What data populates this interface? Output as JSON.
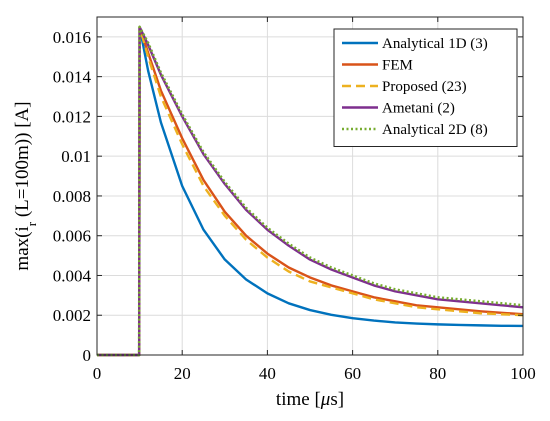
{
  "chart_data": {
    "type": "line",
    "title": "",
    "xlabel_parts": [
      "time [",
      "μ",
      "s]"
    ],
    "ylabel_parts": [
      "max(i",
      "r",
      " (L=100m)) [A]"
    ],
    "xlim": [
      0,
      100
    ],
    "ylim": [
      0,
      0.017
    ],
    "xticks": [
      0,
      20,
      40,
      60,
      80,
      100
    ],
    "yticks": [
      0,
      0.002,
      0.004,
      0.006,
      0.008,
      0.01,
      0.012,
      0.014,
      0.016
    ],
    "xtick_labels": [
      "0",
      "20",
      "40",
      "60",
      "80",
      "100"
    ],
    "ytick_labels": [
      "0",
      "0.002",
      "0.004",
      "0.006",
      "0.008",
      "0.01",
      "0.012",
      "0.014",
      "0.016"
    ],
    "grid": true,
    "legend_position": "top-right",
    "series": [
      {
        "name": "Analytical 1D (3)",
        "color": "#0072bd",
        "style": "solid",
        "x": [
          0,
          9.9,
          10,
          12,
          15,
          20,
          25,
          30,
          35,
          40,
          45,
          50,
          55,
          60,
          65,
          70,
          75,
          80,
          85,
          90,
          95,
          100
        ],
        "y": [
          0,
          0,
          0.0165,
          0.0143,
          0.0117,
          0.0085,
          0.0063,
          0.0048,
          0.0038,
          0.0031,
          0.0026,
          0.00226,
          0.00202,
          0.00185,
          0.00173,
          0.00164,
          0.00158,
          0.00154,
          0.00151,
          0.00149,
          0.00147,
          0.00146
        ]
      },
      {
        "name": "FEM",
        "color": "#d95319",
        "style": "solid",
        "x": [
          0,
          9.9,
          10,
          12,
          15,
          20,
          25,
          30,
          35,
          40,
          45,
          50,
          55,
          60,
          65,
          70,
          75,
          80,
          85,
          90,
          95,
          100
        ],
        "y": [
          0,
          0,
          0.0165,
          0.0152,
          0.0133,
          0.0109,
          0.0088,
          0.0072,
          0.006,
          0.0051,
          0.0044,
          0.0039,
          0.0035,
          0.0032,
          0.0029,
          0.0027,
          0.0025,
          0.0024,
          0.0023,
          0.0022,
          0.00212,
          0.00205
        ]
      },
      {
        "name": "Proposed (23)",
        "color": "#edb120",
        "style": "dashed",
        "x": [
          0,
          9.9,
          10,
          12,
          15,
          20,
          25,
          30,
          35,
          40,
          45,
          50,
          55,
          60,
          65,
          70,
          75,
          80,
          85,
          90,
          95,
          100
        ],
        "y": [
          0,
          0,
          0.0165,
          0.015,
          0.013,
          0.0106,
          0.0085,
          0.007,
          0.0058,
          0.0049,
          0.0042,
          0.0037,
          0.0034,
          0.0031,
          0.0028,
          0.0026,
          0.0024,
          0.0023,
          0.0022,
          0.0021,
          0.00205,
          0.002
        ]
      },
      {
        "name": "Ametani (2)",
        "color": "#7e2f8e",
        "style": "solid",
        "x": [
          0,
          9.9,
          10,
          12,
          15,
          20,
          25,
          30,
          35,
          40,
          45,
          50,
          55,
          60,
          65,
          70,
          75,
          80,
          85,
          90,
          95,
          100
        ],
        "y": [
          0,
          0,
          0.0165,
          0.0156,
          0.0141,
          0.012,
          0.0101,
          0.0086,
          0.0073,
          0.0063,
          0.0055,
          0.0048,
          0.0043,
          0.0039,
          0.0035,
          0.0032,
          0.003,
          0.0028,
          0.0027,
          0.0026,
          0.0025,
          0.0024
        ]
      },
      {
        "name": "Analytical 2D (8)",
        "color": "#77ac30",
        "style": "dotted",
        "x": [
          0,
          9.9,
          10,
          12,
          15,
          20,
          25,
          30,
          35,
          40,
          45,
          50,
          55,
          60,
          65,
          70,
          75,
          80,
          85,
          90,
          95,
          100
        ],
        "y": [
          0,
          0,
          0.0165,
          0.0157,
          0.0142,
          0.0121,
          0.0102,
          0.0087,
          0.0074,
          0.0064,
          0.0056,
          0.0049,
          0.0044,
          0.004,
          0.0036,
          0.0033,
          0.0031,
          0.0029,
          0.0028,
          0.0027,
          0.0026,
          0.0025
        ]
      }
    ]
  }
}
